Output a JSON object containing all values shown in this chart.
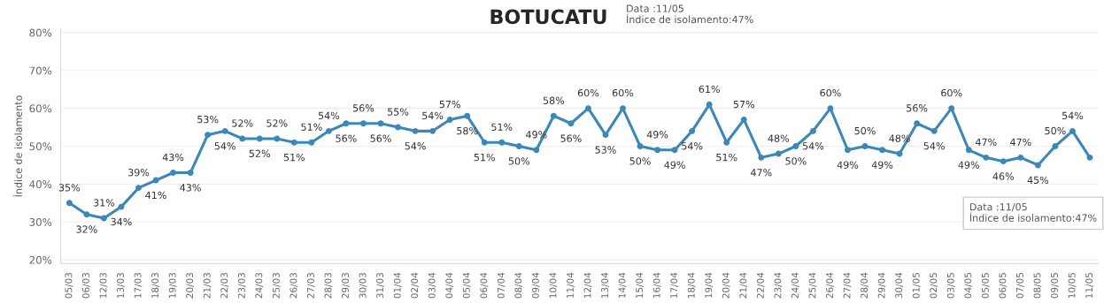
{
  "chart_data": {
    "type": "line",
    "title": "BOTUCATU",
    "ylabel": "Índice de isolamento",
    "categories": [
      "05/03",
      "06/03",
      "12/03",
      "13/03",
      "17/03",
      "18/03",
      "19/03",
      "20/03",
      "21/03",
      "22/03",
      "23/03",
      "24/03",
      "25/03",
      "26/03",
      "27/03",
      "28/03",
      "29/03",
      "30/03",
      "31/03",
      "01/04",
      "02/04",
      "03/04",
      "04/04",
      "05/04",
      "06/04",
      "07/04",
      "08/04",
      "09/04",
      "10/04",
      "11/04",
      "12/04",
      "13/04",
      "14/04",
      "15/04",
      "16/04",
      "17/04",
      "18/04",
      "19/04",
      "20/04",
      "21/04",
      "22/04",
      "23/04",
      "24/04",
      "25/04",
      "26/04",
      "27/04",
      "28/04",
      "29/04",
      "30/04",
      "01/05",
      "02/05",
      "03/05",
      "04/05",
      "05/05",
      "06/05",
      "07/05",
      "08/05",
      "09/05",
      "10/05",
      "11/05"
    ],
    "series": [
      {
        "color": "#3a87b8",
        "values": [
          35,
          32,
          31,
          34,
          39,
          41,
          43,
          43,
          53,
          54,
          52,
          52,
          52,
          51,
          51,
          54,
          56,
          56,
          56,
          55,
          54,
          54,
          57,
          58,
          51,
          51,
          50,
          49,
          58,
          56,
          60,
          53,
          60,
          50,
          49,
          49,
          54,
          61,
          51,
          57,
          47,
          48,
          50,
          54,
          60,
          49,
          50,
          49,
          48,
          56,
          54,
          60,
          49,
          47,
          46,
          47,
          45,
          50,
          54,
          47
        ],
        "value_labels": [
          "35%",
          "32%",
          "31%",
          "34%",
          "39%",
          "41%",
          "43%",
          "43%",
          "53%",
          "54%",
          "52%",
          "52%",
          "52%",
          "51%",
          "51%",
          "54%",
          "56%",
          "56%",
          "56%",
          "55%",
          "54%",
          "54%",
          "57%",
          "58%",
          "51%",
          "51%",
          "50%",
          "49%",
          "58%",
          "56%",
          "60%",
          "53%",
          "60%",
          "50%",
          "49%",
          "49%",
          "54%",
          "61%",
          "51%",
          "57%",
          "47%",
          "48%",
          "50%",
          "54%",
          "60%",
          "49%",
          "50%",
          "49%",
          "48%",
          "56%",
          "54%",
          "60%",
          "49%",
          "47%",
          "46%",
          "47%",
          "45%",
          "50%",
          "54%",
          null
        ]
      }
    ],
    "ylim": [
      19,
      81
    ],
    "yticks": [
      {
        "value": 20,
        "label": "20%"
      },
      {
        "value": 30,
        "label": "30%"
      },
      {
        "value": 40,
        "label": "40%"
      },
      {
        "value": 50,
        "label": "50%"
      },
      {
        "value": 60,
        "label": "60%"
      },
      {
        "value": 70,
        "label": "70%"
      },
      {
        "value": 80,
        "label": "80%"
      }
    ],
    "grid": "y",
    "marker": "circle",
    "line_style": "solid",
    "annotations": [
      "Data :11/05\nÍndice de isolamento:47%",
      "Data :11/05\nÍndice de isolamento:47%"
    ]
  }
}
